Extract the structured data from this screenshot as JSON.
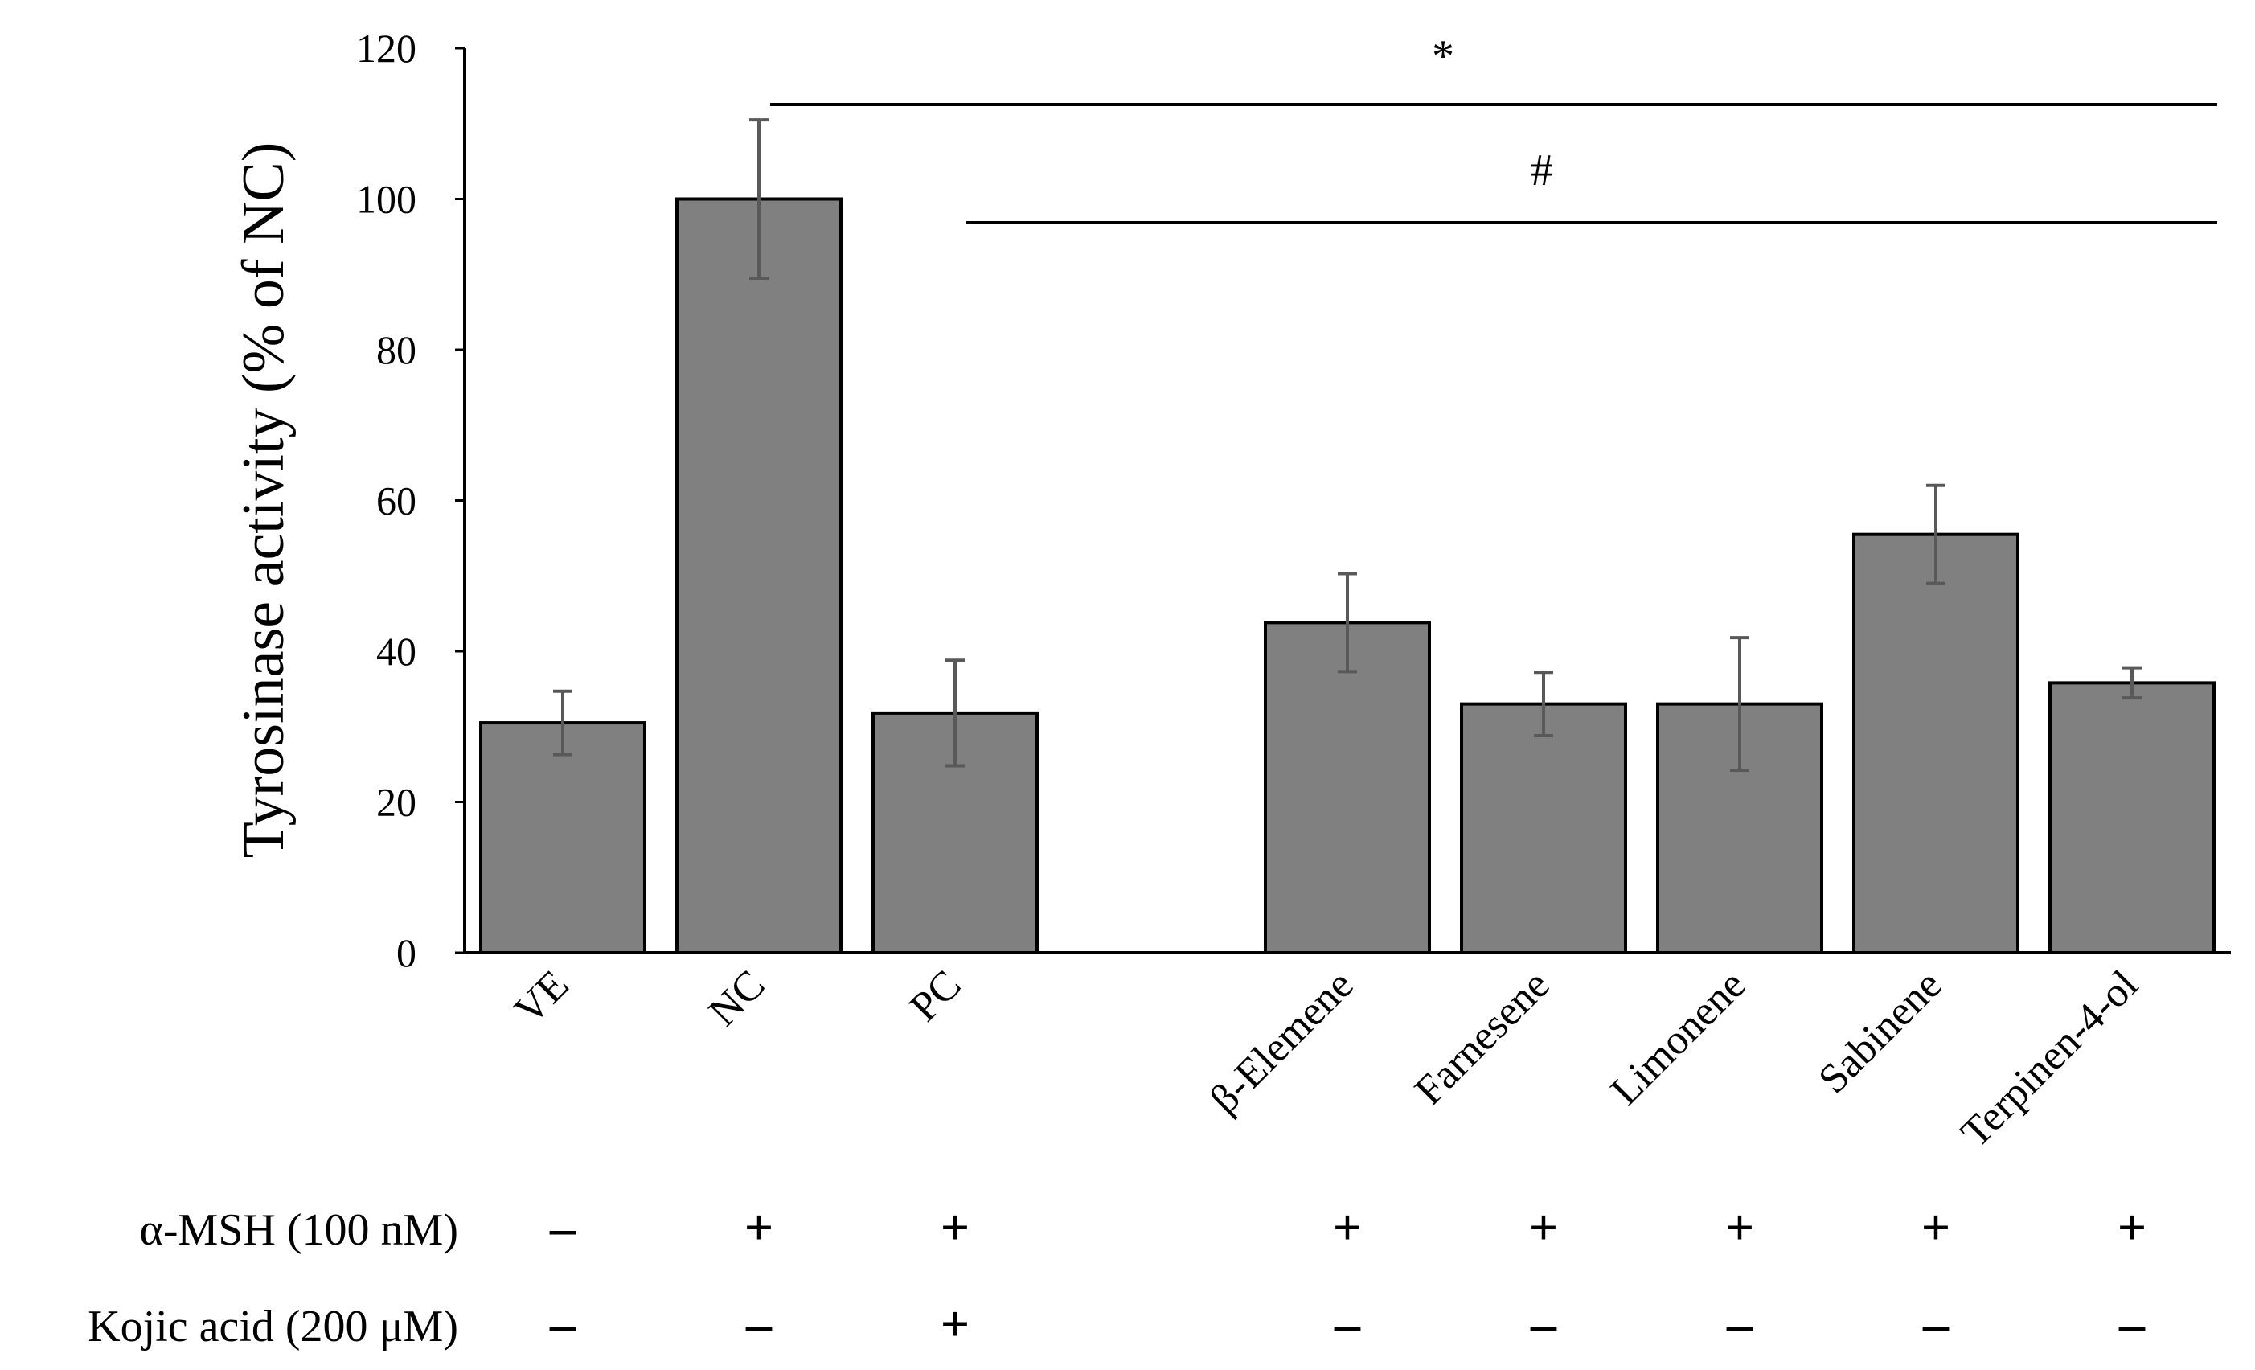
{
  "chart_data": {
    "type": "bar",
    "ylabel": "Tyrosinase activity (% of NC)",
    "xlabel": "",
    "ylim": [
      0,
      120
    ],
    "yticks": [
      0,
      20,
      40,
      60,
      80,
      100,
      120
    ],
    "grid": false,
    "categories": [
      "VE",
      "NC",
      "PC",
      "",
      "β-Elemene",
      "Farnesene",
      "Limonene",
      "Sabinene",
      "Terpinen-4-ol"
    ],
    "values": [
      30.5,
      100,
      31.8,
      null,
      43.8,
      33,
      33,
      55.5,
      35.8
    ],
    "errors": [
      4.2,
      10.5,
      7,
      null,
      6.5,
      4.2,
      8.8,
      6.5,
      2
    ],
    "bar_color": "#808080",
    "significance": [
      {
        "symbol": "*",
        "from_category": "NC",
        "to_category": "Terpinen-4-ol"
      },
      {
        "symbol": "#",
        "from_category": "PC",
        "to_category": "Terpinen-4-ol"
      }
    ],
    "treatment_rows": [
      {
        "label": "α-MSH (100 nM)",
        "signs": [
          "–",
          "+",
          "+",
          "",
          "+",
          "+",
          "+",
          "+",
          "+"
        ]
      },
      {
        "label": "Kojic acid (200 μM)",
        "signs": [
          "–",
          "–",
          "+",
          "",
          "–",
          "–",
          "–",
          "–",
          "–"
        ]
      }
    ]
  }
}
